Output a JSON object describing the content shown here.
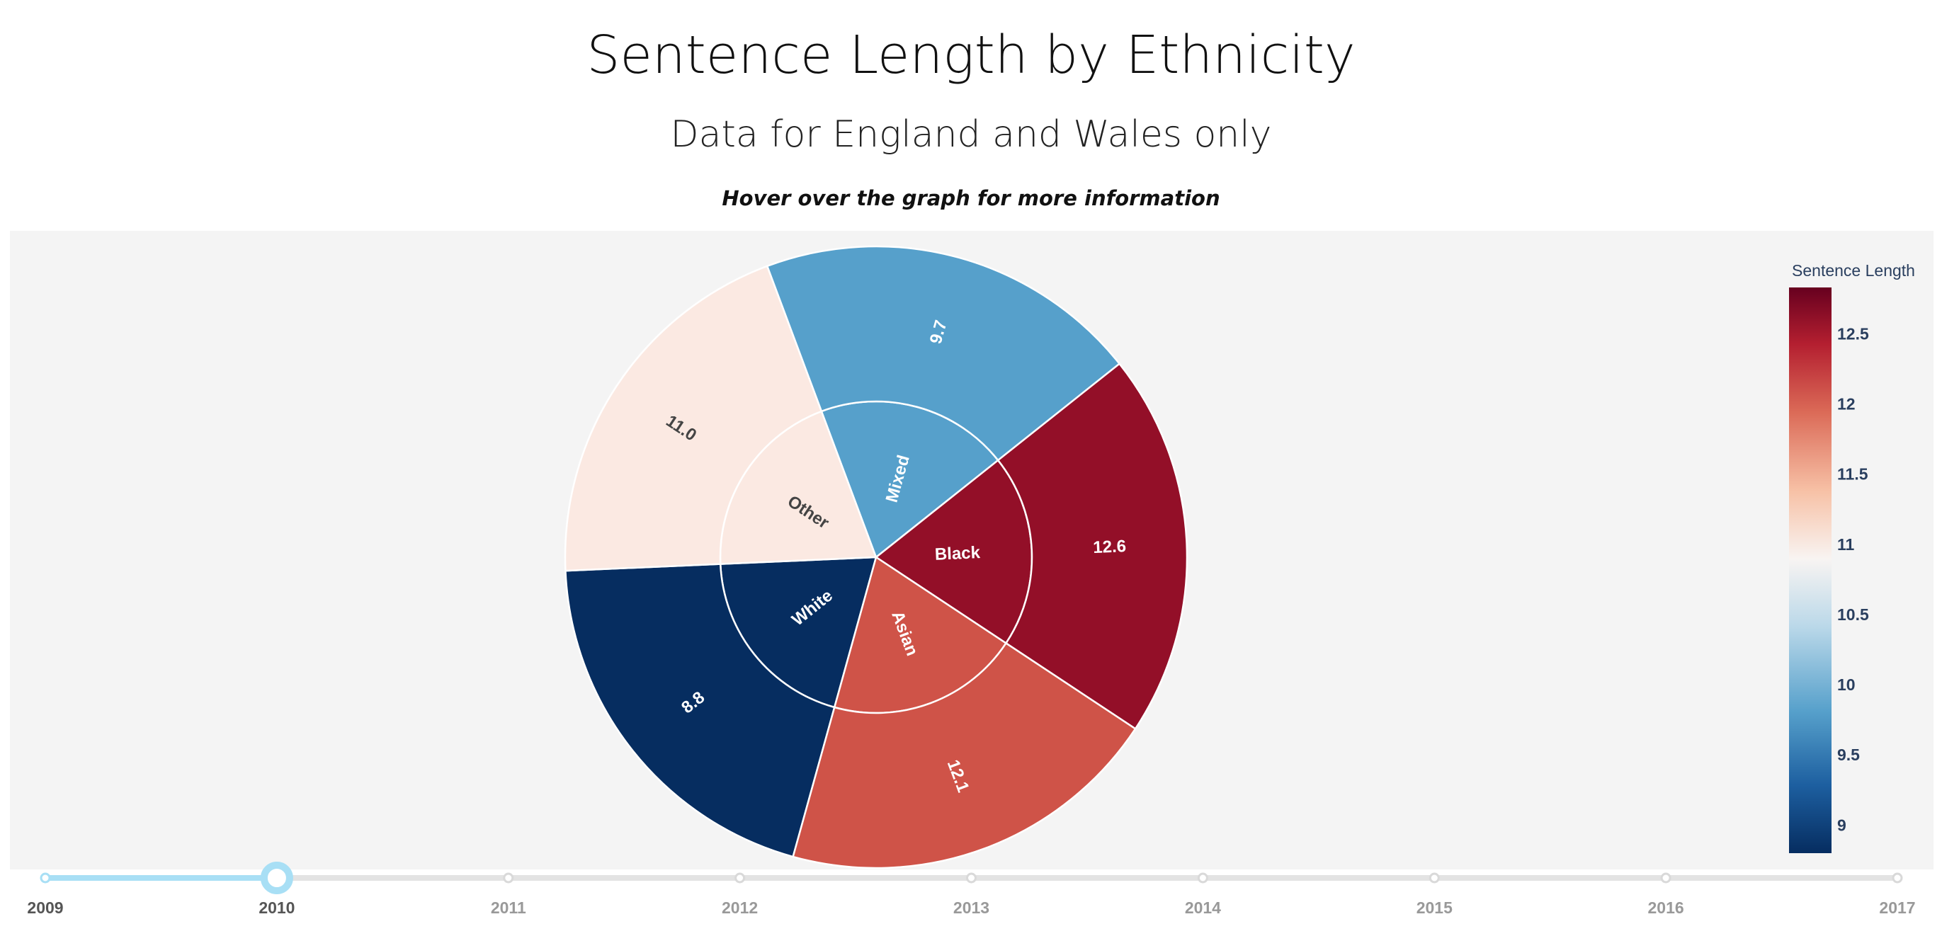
{
  "header": {
    "title": "Sentence Length by Ethnicity",
    "subtitle": "Data for England and Wales only",
    "hint": "Hover over the graph for more information"
  },
  "chart_data": {
    "type": "sunburst",
    "year": "2010",
    "segments": [
      {
        "name": "White",
        "value": 8.8,
        "color": "#062d60"
      },
      {
        "name": "Other",
        "value": 11.0,
        "color": "#fbe9e2"
      },
      {
        "name": "Mixed",
        "value": 9.7,
        "color": "#56a0cb"
      },
      {
        "name": "Black",
        "value": 12.6,
        "color": "#930f28"
      },
      {
        "name": "Asian",
        "value": 12.1,
        "color": "#cf5348"
      }
    ],
    "colorbar": {
      "title": "Sentence Length",
      "ticks": [
        "9",
        "9.5",
        "10",
        "10.5",
        "11",
        "11.5",
        "12",
        "12.5"
      ],
      "range": [
        8.8,
        12.83
      ]
    },
    "slider": {
      "years": [
        "2009",
        "2010",
        "2011",
        "2012",
        "2013",
        "2014",
        "2015",
        "2016",
        "2017"
      ],
      "active": "2010"
    }
  }
}
